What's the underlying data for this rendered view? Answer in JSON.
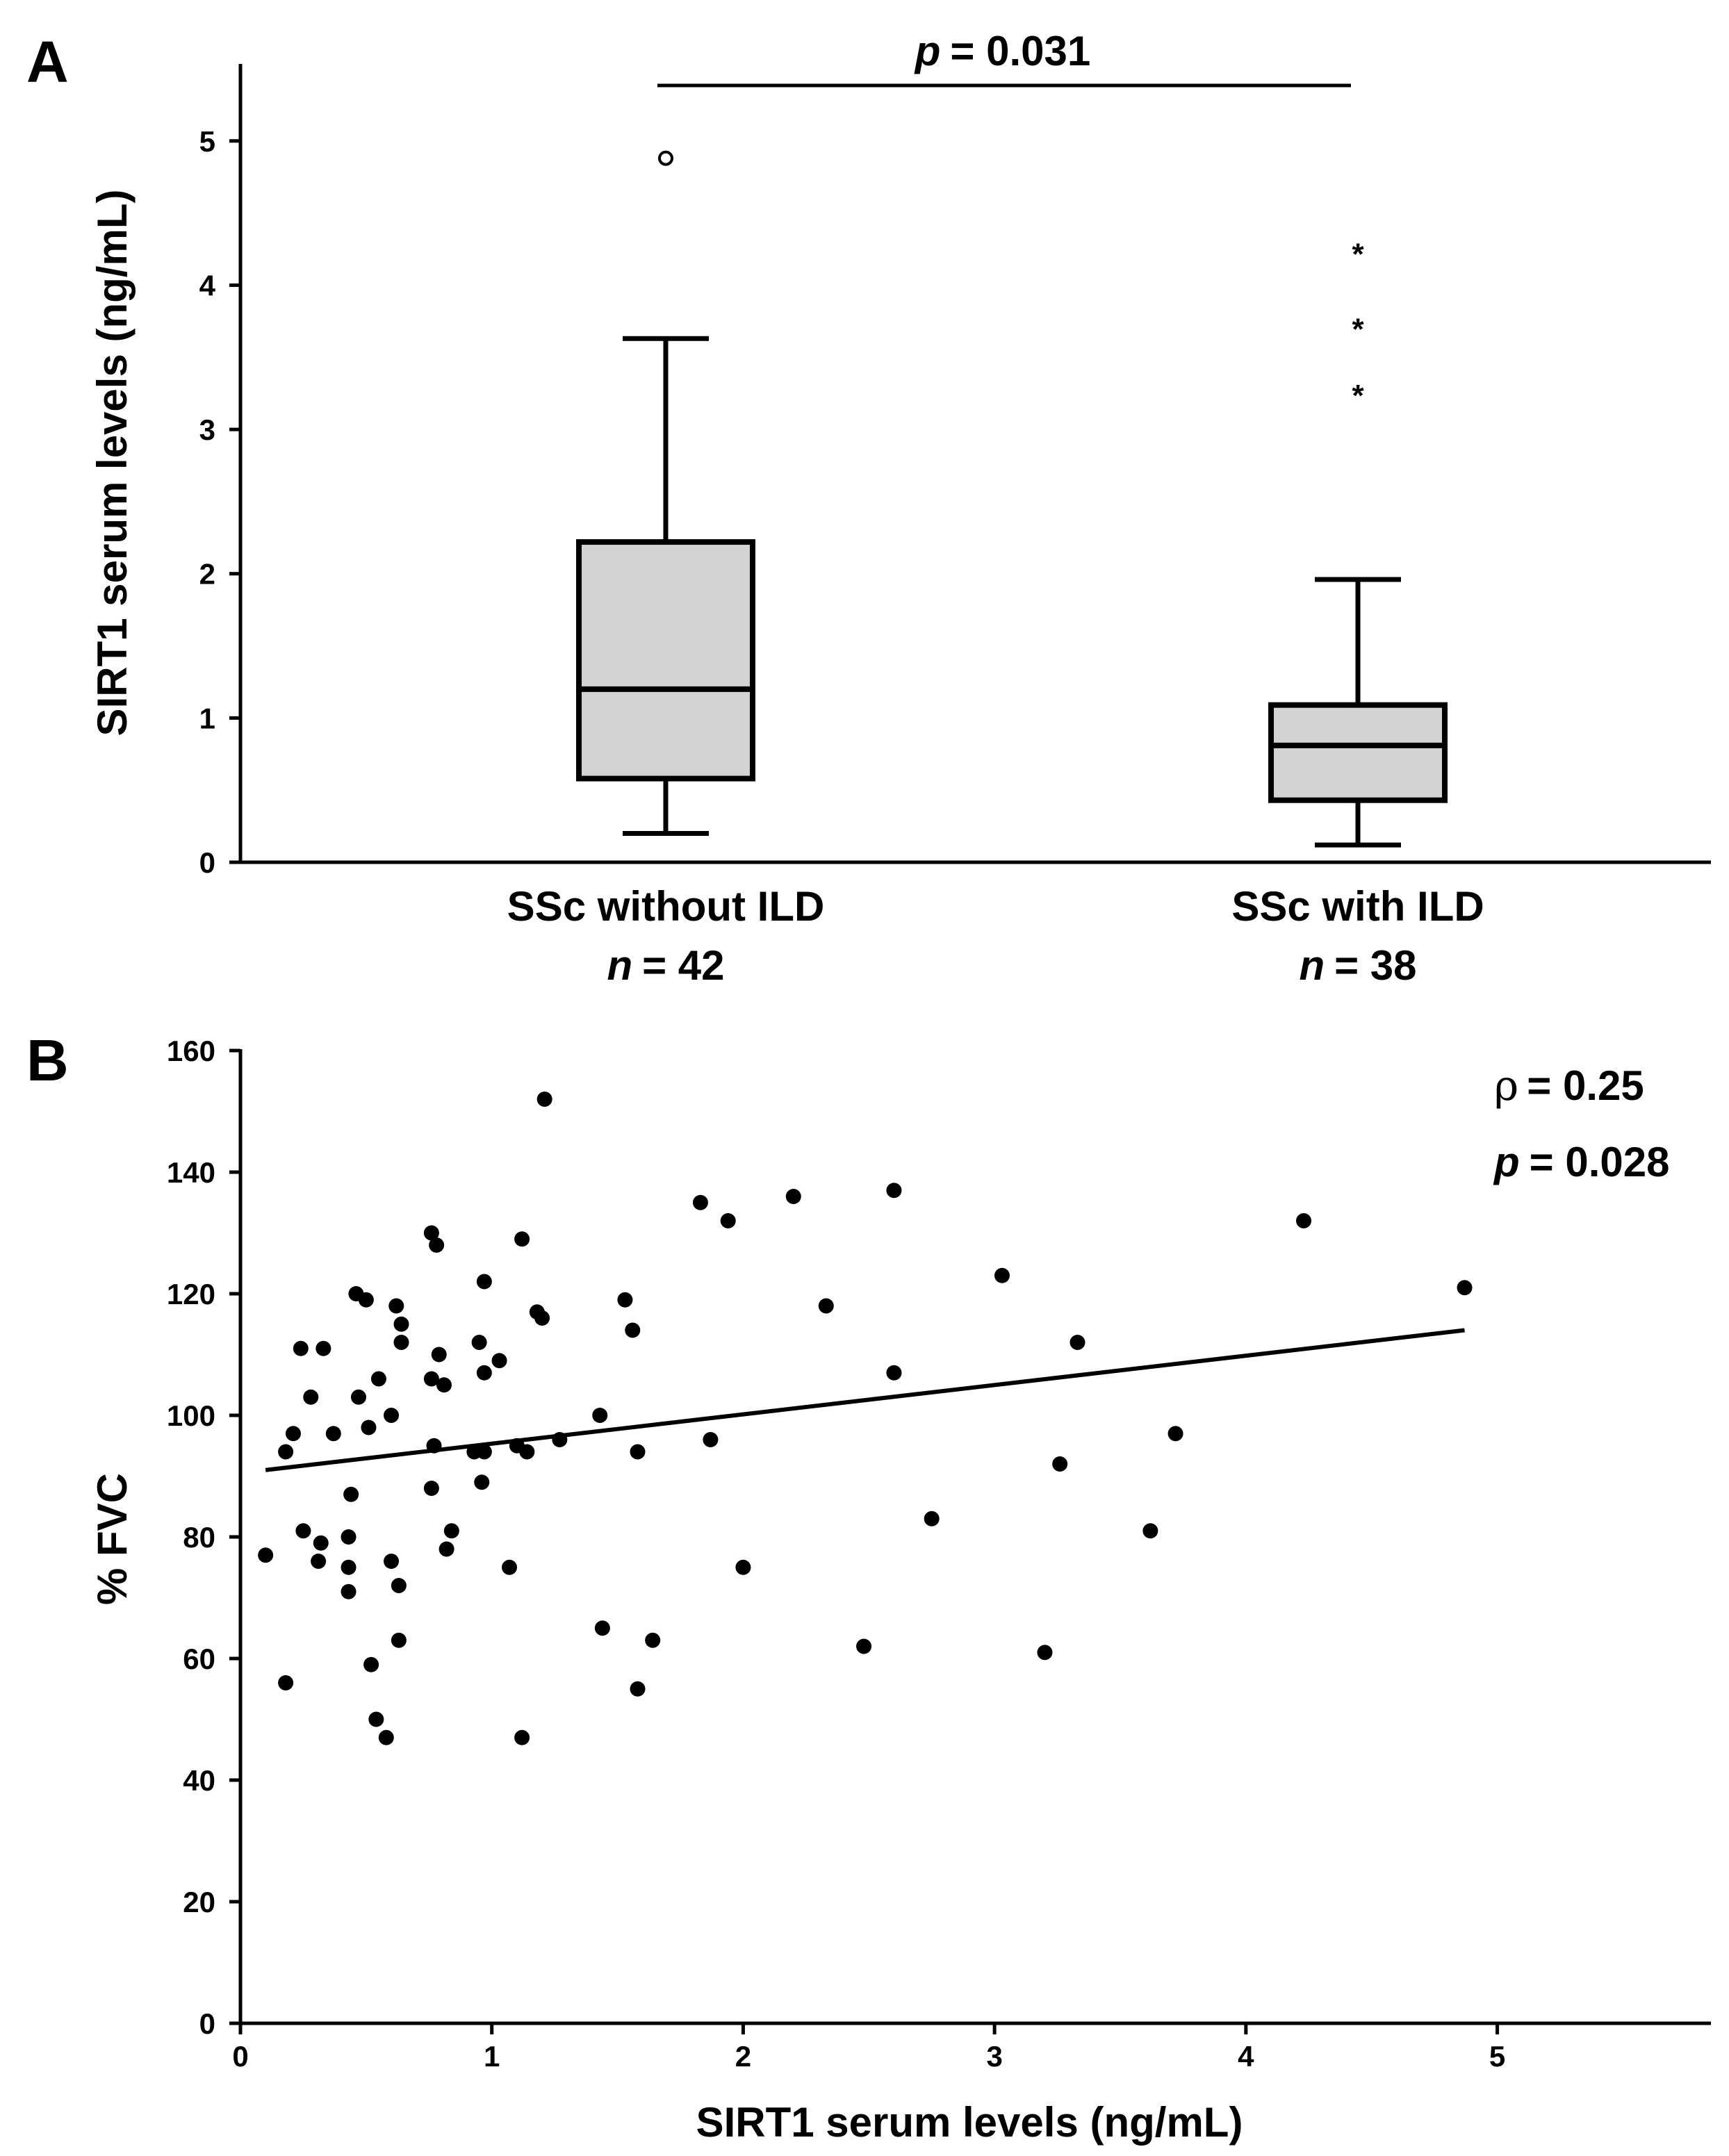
{
  "chart_data": [
    {
      "panel": "A",
      "type": "box",
      "ylabel": "SIRT1 serum levels (ng/mL)",
      "ylim": [
        0,
        5.5
      ],
      "yticks": [
        "0",
        "1",
        "2",
        "3",
        "4",
        "5"
      ],
      "p_label": "p",
      "p_value": "= 0.031",
      "groups": [
        {
          "label": "SSc without ILD",
          "n_label": "n",
          "n_value": "= 42",
          "whisker_low": 0.2,
          "q1": 0.58,
          "median": 1.2,
          "q3": 2.22,
          "whisker_high": 3.63,
          "outliers_circle": [
            4.88
          ],
          "outliers_star": []
        },
        {
          "label": "SSc with ILD",
          "n_label": "n",
          "n_value": "= 38",
          "whisker_low": 0.12,
          "q1": 0.43,
          "median": 0.81,
          "q3": 1.09,
          "whisker_high": 1.96,
          "outliers_circle": [],
          "outliers_star": [
            4.25,
            3.73,
            3.27
          ]
        }
      ],
      "box_fill": "#d3d3d3"
    },
    {
      "panel": "B",
      "type": "scatter",
      "xlabel": "SIRT1 serum levels (ng/mL)",
      "ylabel": "% FVC",
      "xlim": [
        0,
        5.85
      ],
      "ylim": [
        0,
        160
      ],
      "xticks": [
        "0",
        "1",
        "2",
        "3",
        "4",
        "5"
      ],
      "yticks": [
        "0",
        "20",
        "40",
        "60",
        "80",
        "100",
        "120",
        "140",
        "160"
      ],
      "rho_symbol": "ρ",
      "rho_value": "= 0.25",
      "p_label": "p",
      "p_value": "= 0.028",
      "regression": {
        "x": [
          0.1,
          4.87
        ],
        "y": [
          91,
          114
        ]
      },
      "points": [
        [
          0.1,
          77
        ],
        [
          0.18,
          56
        ],
        [
          0.18,
          94
        ],
        [
          0.21,
          97
        ],
        [
          0.24,
          111
        ],
        [
          0.25,
          81
        ],
        [
          0.28,
          103
        ],
        [
          0.31,
          76
        ],
        [
          0.32,
          79
        ],
        [
          0.33,
          111
        ],
        [
          0.37,
          97
        ],
        [
          0.43,
          80
        ],
        [
          0.43,
          75
        ],
        [
          0.43,
          71
        ],
        [
          0.44,
          87
        ],
        [
          0.46,
          120
        ],
        [
          0.47,
          103
        ],
        [
          0.5,
          119
        ],
        [
          0.51,
          98
        ],
        [
          0.52,
          59
        ],
        [
          0.54,
          50
        ],
        [
          0.55,
          106
        ],
        [
          0.58,
          47
        ],
        [
          0.6,
          100
        ],
        [
          0.6,
          76
        ],
        [
          0.63,
          72
        ],
        [
          0.63,
          63
        ],
        [
          0.62,
          118
        ],
        [
          0.64,
          115
        ],
        [
          0.64,
          112
        ],
        [
          0.76,
          130
        ],
        [
          0.76,
          106
        ],
        [
          0.77,
          95
        ],
        [
          0.78,
          128
        ],
        [
          0.79,
          110
        ],
        [
          0.81,
          105
        ],
        [
          0.82,
          78
        ],
        [
          0.84,
          81
        ],
        [
          0.76,
          88
        ],
        [
          0.93,
          94
        ],
        [
          0.95,
          112
        ],
        [
          0.96,
          89
        ],
        [
          0.97,
          94
        ],
        [
          0.97,
          107
        ],
        [
          0.97,
          122
        ],
        [
          1.03,
          109
        ],
        [
          1.07,
          75
        ],
        [
          1.1,
          95
        ],
        [
          1.12,
          129
        ],
        [
          1.12,
          47
        ],
        [
          1.14,
          94
        ],
        [
          1.18,
          117
        ],
        [
          1.2,
          116
        ],
        [
          1.21,
          152
        ],
        [
          1.27,
          96
        ],
        [
          1.43,
          100
        ],
        [
          1.44,
          65
        ],
        [
          1.53,
          119
        ],
        [
          1.56,
          114
        ],
        [
          1.58,
          94
        ],
        [
          1.58,
          55
        ],
        [
          1.64,
          63
        ],
        [
          1.83,
          135
        ],
        [
          1.87,
          96
        ],
        [
          1.94,
          132
        ],
        [
          2.0,
          75
        ],
        [
          2.2,
          136
        ],
        [
          2.33,
          118
        ],
        [
          2.48,
          62
        ],
        [
          2.6,
          137
        ],
        [
          2.6,
          107
        ],
        [
          2.75,
          83
        ],
        [
          3.03,
          123
        ],
        [
          3.2,
          61
        ],
        [
          3.26,
          92
        ],
        [
          3.33,
          112
        ],
        [
          3.62,
          81
        ],
        [
          3.72,
          97
        ],
        [
          4.23,
          132
        ],
        [
          4.87,
          121
        ]
      ]
    }
  ]
}
